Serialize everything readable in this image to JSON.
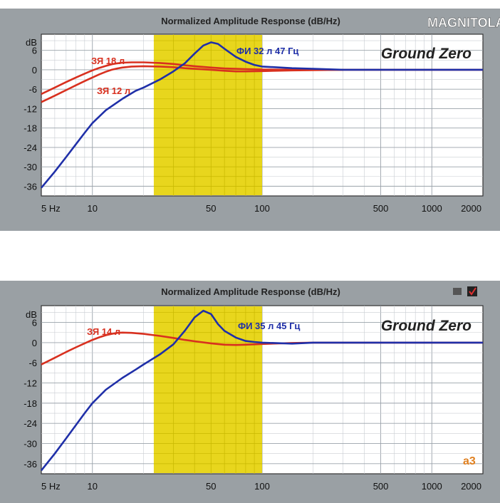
{
  "colors": {
    "sealed": "#d8301f",
    "ported": "#1f2fa8",
    "band": "#e6d20a"
  },
  "charts": [
    {
      "title": "Normalized Amplitude Response (dB/Hz)",
      "logo": "MAGNITOLA",
      "brand": "Ground Zero",
      "y_unit_label": "dB",
      "x_ticks": [
        {
          "v": 5,
          "t": "5 Hz"
        },
        {
          "v": 10,
          "t": "10"
        },
        {
          "v": 50,
          "t": "50"
        },
        {
          "v": 100,
          "t": "100"
        },
        {
          "v": 500,
          "t": "500"
        },
        {
          "v": 1000,
          "t": "1000"
        },
        {
          "v": 2000,
          "t": "2000"
        }
      ],
      "y_ticks": [
        {
          "v": 6,
          "t": "6"
        },
        {
          "v": 0,
          "t": "0"
        },
        {
          "v": -6,
          "t": "-6"
        },
        {
          "v": -12,
          "t": "-12"
        },
        {
          "v": -18,
          "t": "-18"
        },
        {
          "v": -24,
          "t": "-24"
        },
        {
          "v": -30,
          "t": "-30"
        },
        {
          "v": -36,
          "t": "-36"
        }
      ],
      "labels": [
        {
          "text": "ЗЯ 18 л",
          "series": "sealed"
        },
        {
          "text": "ЗЯ 12 л",
          "series": "sealed"
        },
        {
          "text": "ФИ 32 л 47 Гц",
          "series": "ported"
        }
      ],
      "badge": ""
    },
    {
      "title": "Normalized Amplitude Response (dB/Hz)",
      "logo": "",
      "brand": "Ground Zero",
      "y_unit_label": "dB",
      "x_ticks": [
        {
          "v": 5,
          "t": "5 Hz"
        },
        {
          "v": 10,
          "t": "10"
        },
        {
          "v": 50,
          "t": "50"
        },
        {
          "v": 100,
          "t": "100"
        },
        {
          "v": 500,
          "t": "500"
        },
        {
          "v": 1000,
          "t": "1000"
        },
        {
          "v": 2000,
          "t": "2000"
        }
      ],
      "y_ticks": [
        {
          "v": 6,
          "t": "6"
        },
        {
          "v": 0,
          "t": "0"
        },
        {
          "v": -6,
          "t": "-6"
        },
        {
          "v": -12,
          "t": "-12"
        },
        {
          "v": -18,
          "t": "-18"
        },
        {
          "v": -24,
          "t": "-24"
        },
        {
          "v": -30,
          "t": "-30"
        },
        {
          "v": -36,
          "t": "-36"
        }
      ],
      "labels": [
        {
          "text": "ЗЯ 14 л",
          "series": "sealed"
        },
        {
          "text": "ФИ 35 л 45 Гц",
          "series": "ported"
        }
      ],
      "badge": "a3"
    }
  ],
  "chart_data": [
    {
      "type": "line",
      "title": "Normalized Amplitude Response (dB/Hz)",
      "xlabel": "Hz",
      "ylabel": "dB",
      "xscale": "log",
      "xlim": [
        5,
        2000
      ],
      "ylim": [
        -39,
        11
      ],
      "highlight_band": [
        23,
        100
      ],
      "series": [
        {
          "name": "ЗЯ 18 л",
          "color": "sealed",
          "x": [
            5,
            6,
            7,
            8,
            9,
            10,
            11,
            12,
            13,
            14,
            15,
            17,
            20,
            25,
            30,
            35,
            40,
            50,
            60,
            80,
            100,
            150,
            200,
            300,
            500,
            1000,
            2000
          ],
          "y": [
            -7.5,
            -5.5,
            -3.8,
            -2.4,
            -1.2,
            -0.2,
            0.6,
            1.2,
            1.7,
            2.0,
            2.2,
            2.3,
            2.3,
            2.1,
            1.8,
            1.4,
            1.1,
            0.7,
            0.4,
            0.2,
            0.1,
            0,
            0,
            0,
            0,
            0,
            0
          ]
        },
        {
          "name": "ЗЯ 12 л",
          "color": "sealed",
          "x": [
            5,
            6,
            7,
            8,
            9,
            10,
            11,
            12,
            13,
            14,
            15,
            17,
            20,
            25,
            30,
            35,
            40,
            50,
            60,
            70,
            80,
            100,
            150,
            200,
            300
          ],
          "y": [
            -10,
            -8,
            -6.3,
            -4.8,
            -3.5,
            -2.4,
            -1.4,
            -0.6,
            0,
            0.4,
            0.7,
            1.0,
            1.1,
            1.0,
            0.8,
            0.5,
            0.3,
            0,
            -0.3,
            -0.5,
            -0.5,
            -0.4,
            -0.2,
            -0.1,
            0
          ]
        },
        {
          "name": "ФИ 32 л 47 Гц",
          "color": "ported",
          "x": [
            5,
            6,
            7,
            8,
            9,
            10,
            12,
            15,
            18,
            20,
            25,
            30,
            35,
            40,
            45,
            50,
            55,
            60,
            70,
            80,
            90,
            100,
            150,
            200,
            300,
            500,
            1000,
            2000
          ],
          "y": [
            -36.5,
            -31.5,
            -27,
            -23,
            -19.5,
            -16.5,
            -12.5,
            -9,
            -6.5,
            -5.5,
            -3,
            -0.5,
            2,
            5,
            7.5,
            8.5,
            8,
            6.5,
            4,
            2.5,
            1.5,
            1,
            0.5,
            0.3,
            0,
            0,
            0,
            0
          ]
        }
      ]
    },
    {
      "type": "line",
      "title": "Normalized Amplitude Response (dB/Hz)",
      "xlabel": "Hz",
      "ylabel": "dB",
      "xscale": "log",
      "xlim": [
        5,
        2000
      ],
      "ylim": [
        -39,
        11
      ],
      "highlight_band": [
        23,
        100
      ],
      "series": [
        {
          "name": "ЗЯ 14 л",
          "color": "sealed",
          "x": [
            5,
            6,
            7,
            8,
            9,
            10,
            11,
            12,
            13,
            14,
            15,
            17,
            20,
            25,
            30,
            35,
            40,
            50,
            60,
            70,
            80,
            100,
            150,
            200,
            300,
            500,
            1000,
            2000
          ],
          "y": [
            -6.5,
            -4.5,
            -2.8,
            -1.4,
            -0.2,
            0.8,
            1.6,
            2.2,
            2.6,
            2.9,
            3.0,
            2.9,
            2.6,
            2.0,
            1.4,
            0.8,
            0.4,
            -0.2,
            -0.6,
            -0.7,
            -0.6,
            -0.4,
            -0.1,
            0,
            0,
            0,
            0,
            0
          ]
        },
        {
          "name": "ФИ 35 л 45 Гц",
          "color": "ported",
          "x": [
            5,
            6,
            7,
            8,
            9,
            10,
            12,
            15,
            18,
            20,
            25,
            30,
            35,
            40,
            45,
            50,
            55,
            60,
            70,
            80,
            90,
            100,
            150,
            200,
            300,
            500,
            1000,
            2000
          ],
          "y": [
            -38,
            -33,
            -28.5,
            -24.5,
            -21,
            -18,
            -14,
            -10.5,
            -8,
            -6.5,
            -3.5,
            -0.5,
            3.5,
            7.5,
            9.5,
            8.5,
            5.5,
            3.5,
            1.5,
            0.5,
            0.2,
            0,
            -0.3,
            0,
            0,
            0,
            0,
            0
          ]
        }
      ]
    }
  ]
}
